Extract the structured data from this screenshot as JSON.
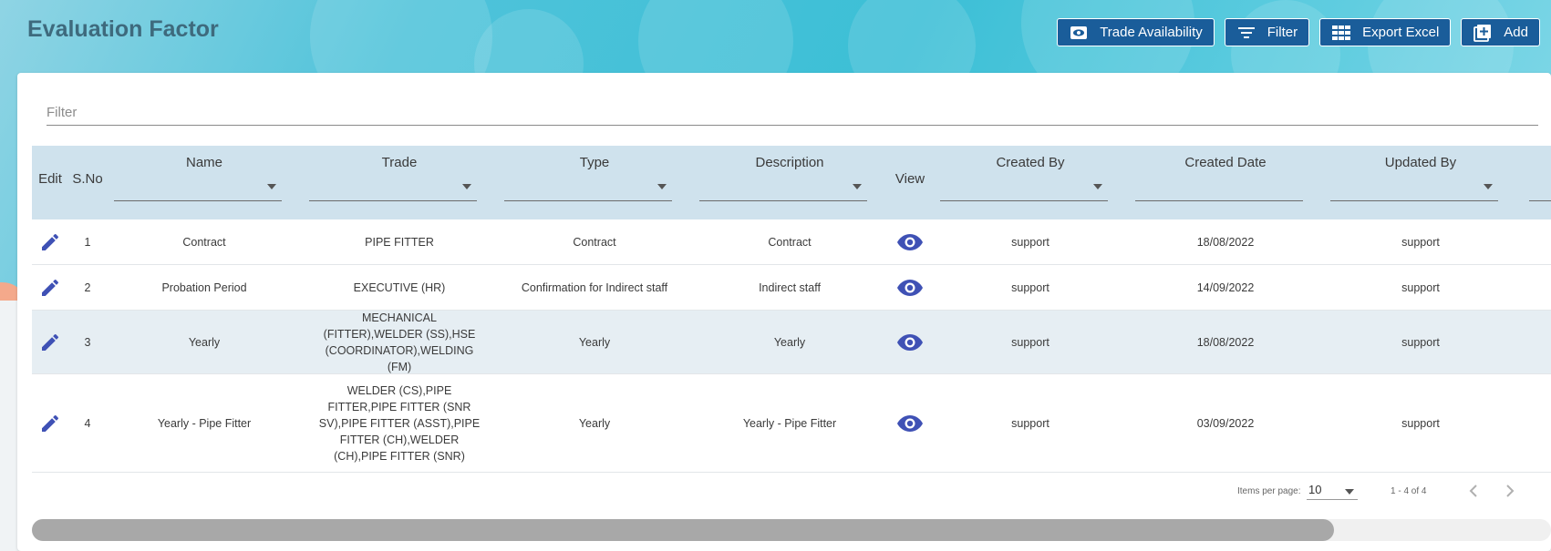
{
  "page": {
    "title": "Evaluation Factor"
  },
  "toolbar": {
    "trade_availability": "Trade Availability",
    "filter": "Filter",
    "export_excel": "Export Excel",
    "add": "Add"
  },
  "filter": {
    "placeholder": "Filter",
    "value": ""
  },
  "table": {
    "headers": {
      "edit": "Edit",
      "sno": "S.No",
      "name": "Name",
      "trade": "Trade",
      "type": "Type",
      "description": "Description",
      "view": "View",
      "created_by": "Created By",
      "created_date": "Created Date",
      "updated_by": "Updated By"
    },
    "rows": [
      {
        "sno": "1",
        "name": "Contract",
        "trade": "PIPE FITTER",
        "type": "Contract",
        "description": "Contract",
        "created_by": "support",
        "created_date": "18/08/2022",
        "updated_by": "support"
      },
      {
        "sno": "2",
        "name": "Probation Period",
        "trade": "EXECUTIVE (HR)",
        "type": "Confirmation for Indirect staff",
        "description": "Indirect staff",
        "created_by": "support",
        "created_date": "14/09/2022",
        "updated_by": "support"
      },
      {
        "sno": "3",
        "name": "Yearly",
        "trade": "MECHANICAL (FITTER),WELDER (SS),HSE (COORDINATOR),WELDING (FM)",
        "type": "Yearly",
        "description": "Yearly",
        "created_by": "support",
        "created_date": "18/08/2022",
        "updated_by": "support"
      },
      {
        "sno": "4",
        "name": "Yearly - Pipe Fitter",
        "trade": "WELDER (CS),PIPE FITTER,PIPE FITTER (SNR SV),PIPE FITTER (ASST),PIPE FITTER (CH),WELDER (CH),PIPE FITTER (SNR)",
        "type": "Yearly",
        "description": "Yearly - Pipe Fitter",
        "created_by": "support",
        "created_date": "03/09/2022",
        "updated_by": "support"
      }
    ]
  },
  "paginator": {
    "items_per_page_label": "Items per page:",
    "page_size": "10",
    "range": "1 - 4 of 4"
  },
  "colors": {
    "primary_button": "#1a5d9a",
    "icon_blue": "#3f51b5",
    "header_row": "#cfe2ed",
    "alt_row": "#e6eef3",
    "title": "#3e6a7d"
  }
}
